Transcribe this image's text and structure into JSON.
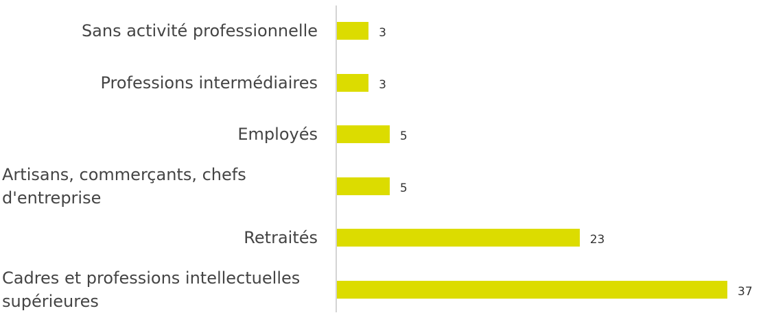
{
  "chart_data": {
    "type": "bar",
    "orientation": "horizontal",
    "categories": [
      "Sans activité professionnelle",
      "Professions intermédiaires",
      "Employés",
      "Artisans, commerçants, chefs d'entreprise",
      "Retraités",
      "Cadres et professions intellectuelles supérieures"
    ],
    "values": [
      3,
      3,
      5,
      5,
      23,
      37
    ],
    "color": "#dcdc00"
  }
}
